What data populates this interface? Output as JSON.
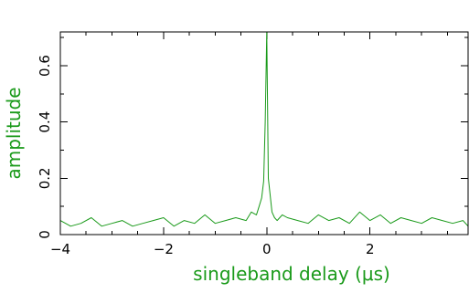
{
  "chart_data": {
    "type": "line",
    "title": "",
    "xlabel": "singleband delay (μs)",
    "ylabel": "amplitude",
    "xlim": [
      -4,
      3.9
    ],
    "ylim": [
      0,
      0.72
    ],
    "xticks": [
      -4,
      -2,
      0,
      2
    ],
    "xtick_labels": [
      "−4",
      "−2",
      "0",
      "2"
    ],
    "yticks": [
      0,
      0.2,
      0.4,
      0.6
    ],
    "ytick_labels": [
      "0",
      "0.2",
      "0.4",
      "0.6"
    ],
    "grid": false,
    "colors": {
      "series": "#1a9a1a",
      "labels": "#1a9a1a",
      "axes": "#000000"
    },
    "series": [
      {
        "x": [
          -4.0,
          -3.8,
          -3.6,
          -3.4,
          -3.2,
          -3.0,
          -2.8,
          -2.6,
          -2.4,
          -2.2,
          -2.0,
          -1.8,
          -1.6,
          -1.4,
          -1.2,
          -1.0,
          -0.8,
          -0.6,
          -0.4,
          -0.3,
          -0.2,
          -0.15,
          -0.1,
          -0.06,
          -0.03,
          0.0,
          0.03,
          0.06,
          0.1,
          0.15,
          0.2,
          0.3,
          0.4,
          0.6,
          0.8,
          1.0,
          1.2,
          1.4,
          1.6,
          1.8,
          2.0,
          2.2,
          2.4,
          2.6,
          2.8,
          3.0,
          3.2,
          3.4,
          3.6,
          3.8,
          3.9
        ],
        "values": [
          0.05,
          0.03,
          0.04,
          0.06,
          0.03,
          0.04,
          0.05,
          0.03,
          0.04,
          0.05,
          0.06,
          0.03,
          0.05,
          0.04,
          0.07,
          0.04,
          0.05,
          0.06,
          0.05,
          0.08,
          0.07,
          0.1,
          0.13,
          0.19,
          0.4,
          0.72,
          0.2,
          0.15,
          0.08,
          0.06,
          0.05,
          0.07,
          0.06,
          0.05,
          0.04,
          0.07,
          0.05,
          0.06,
          0.04,
          0.08,
          0.05,
          0.07,
          0.04,
          0.06,
          0.05,
          0.04,
          0.06,
          0.05,
          0.04,
          0.05,
          0.03
        ]
      }
    ]
  }
}
